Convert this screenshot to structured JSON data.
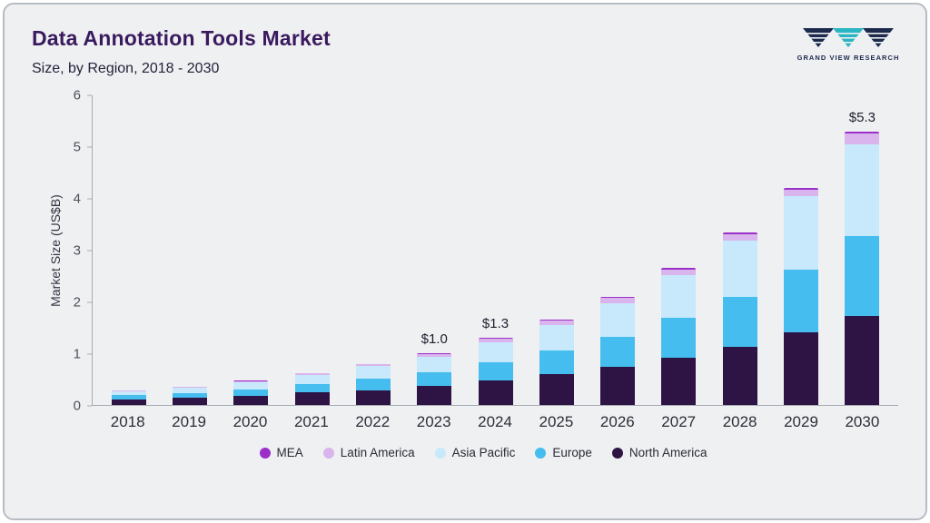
{
  "header": {
    "title": "Data Annotation Tools Market",
    "subtitle": "Size, by Region, 2018 - 2030",
    "logo_text": "GRAND VIEW RESEARCH"
  },
  "chart_data": {
    "type": "bar",
    "stacked": true,
    "title": "Data Annotation Tools Market Size, by Region, 2018 - 2030",
    "xlabel": "",
    "ylabel": "Market Size (US$B)",
    "ylim": [
      0,
      6
    ],
    "yticks": [
      0,
      1,
      2,
      3,
      4,
      5,
      6
    ],
    "grid": false,
    "legend_position": "bottom",
    "categories": [
      "2018",
      "2019",
      "2020",
      "2021",
      "2022",
      "2023",
      "2024",
      "2025",
      "2026",
      "2027",
      "2028",
      "2029",
      "2030"
    ],
    "series": [
      {
        "name": "North America",
        "color": "#2e1445",
        "values": [
          0.11,
          0.14,
          0.18,
          0.24,
          0.29,
          0.37,
          0.47,
          0.6,
          0.74,
          0.92,
          1.13,
          1.4,
          1.72
        ]
      },
      {
        "name": "Europe",
        "color": "#45bdee",
        "values": [
          0.08,
          0.09,
          0.12,
          0.16,
          0.22,
          0.27,
          0.36,
          0.46,
          0.58,
          0.77,
          0.97,
          1.23,
          1.56
        ]
      },
      {
        "name": "Asia Pacific",
        "color": "#c7e9fb",
        "values": [
          0.08,
          0.11,
          0.14,
          0.18,
          0.24,
          0.29,
          0.39,
          0.49,
          0.65,
          0.83,
          1.08,
          1.42,
          1.77
        ]
      },
      {
        "name": "Latin America",
        "color": "#dab4ec",
        "values": [
          0.015,
          0.015,
          0.02,
          0.03,
          0.04,
          0.05,
          0.06,
          0.08,
          0.1,
          0.1,
          0.13,
          0.12,
          0.21
        ]
      },
      {
        "name": "MEA",
        "color": "#9b30c9",
        "values": [
          0.005,
          0.005,
          0.01,
          0.01,
          0.01,
          0.02,
          0.02,
          0.02,
          0.03,
          0.03,
          0.04,
          0.03,
          0.04
        ]
      }
    ],
    "legend": [
      "MEA",
      "Latin America",
      "Asia Pacific",
      "Europe",
      "North America"
    ],
    "annotations": [
      {
        "category": "2023",
        "label": "$1.0"
      },
      {
        "category": "2024",
        "label": "$1.3"
      },
      {
        "category": "2030",
        "label": "$5.3"
      }
    ]
  }
}
